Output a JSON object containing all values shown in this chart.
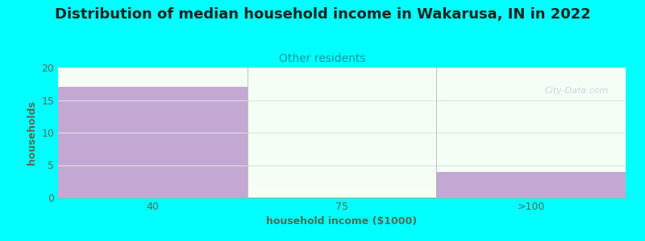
{
  "title": "Distribution of median household income in Wakarusa, IN in 2022",
  "subtitle": "Other residents",
  "xlabel": "household income ($1000)",
  "ylabel": "households",
  "background_color": "#00ffff",
  "plot_bg_top": "#e8f5e8",
  "plot_bg_bottom": "#ffffff",
  "bar_color_purple": "#c4a8d4",
  "bar_color_green": "#d8ecd0",
  "bar_values": [
    17,
    0,
    4
  ],
  "bar_labels": [
    "40",
    "75",
    ">100"
  ],
  "ylim": [
    0,
    20
  ],
  "yticks": [
    0,
    5,
    10,
    15,
    20
  ],
  "title_fontsize": 13,
  "subtitle_fontsize": 10,
  "subtitle_color": "#009999",
  "axis_label_color": "#556b55",
  "tick_color": "#556b55",
  "title_color": "#222222",
  "watermark": "City-Data.com",
  "grid_color": "#e0e0e0"
}
